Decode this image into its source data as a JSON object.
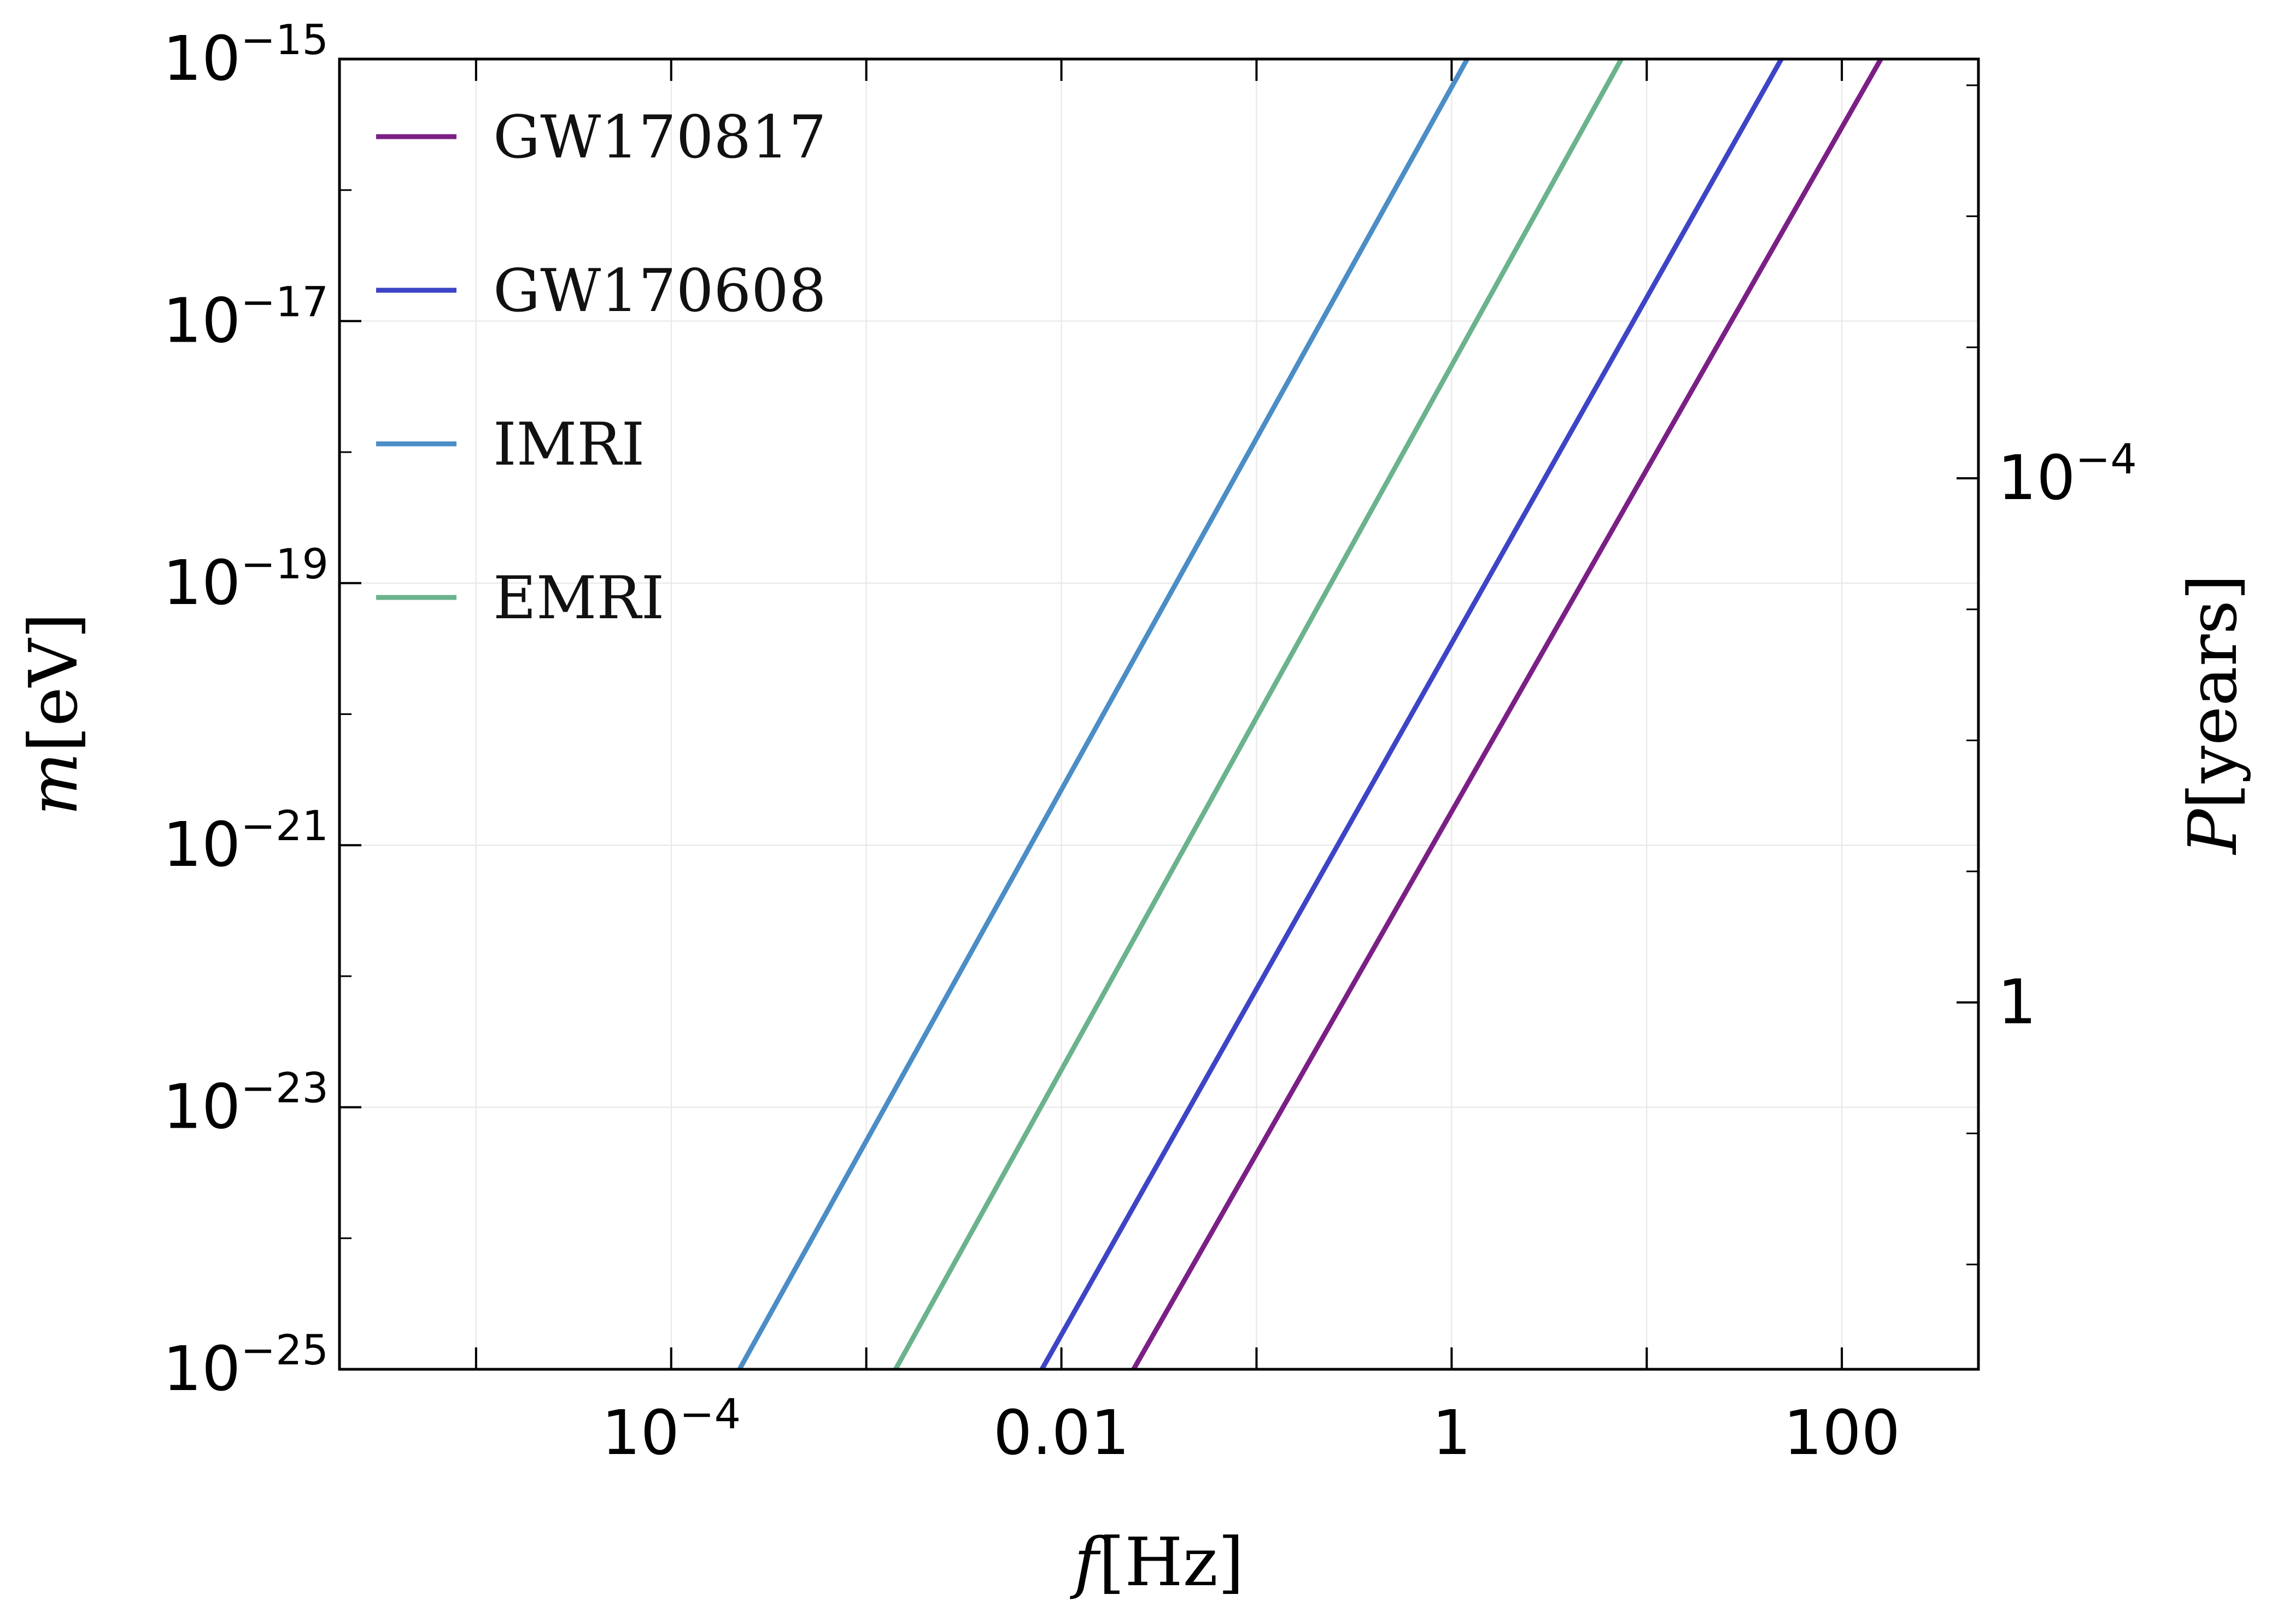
{
  "chart_data": {
    "type": "line",
    "title": "",
    "x_scale": "log",
    "y_scale": "log",
    "xlabel": {
      "symbol": "f",
      "unit": "[Hz]"
    },
    "ylabel": {
      "symbol": "m",
      "unit": "[eV]"
    },
    "y2label": {
      "symbol": "P",
      "unit": "[years]"
    },
    "xlim_log10": [
      -5.7,
      2.7
    ],
    "ylim_log10": [
      -25,
      -15
    ],
    "x_ticks": [
      {
        "log10": -4,
        "mantissa": "10",
        "exponent": "−4"
      },
      {
        "log10": -2,
        "mantissa": "0.01",
        "exponent": ""
      },
      {
        "log10": 0,
        "mantissa": "1",
        "exponent": ""
      },
      {
        "log10": 2,
        "mantissa": "100",
        "exponent": ""
      }
    ],
    "y_ticks": [
      {
        "log10": -25,
        "mantissa": "10",
        "exponent": "−25"
      },
      {
        "log10": -23,
        "mantissa": "10",
        "exponent": "−23"
      },
      {
        "log10": -21,
        "mantissa": "10",
        "exponent": "−21"
      },
      {
        "log10": -19,
        "mantissa": "10",
        "exponent": "−19"
      },
      {
        "log10": -17,
        "mantissa": "10",
        "exponent": "−17"
      },
      {
        "log10": -15,
        "mantissa": "10",
        "exponent": "−15"
      }
    ],
    "y2_ticks": [
      {
        "at_y_log10": -18.2,
        "mantissa": "10",
        "exponent": "−4"
      },
      {
        "at_y_log10": -22.2,
        "mantissa": "1",
        "exponent": ""
      }
    ],
    "grid": true,
    "legend_position": "top-left",
    "series": [
      {
        "name": "GW170817",
        "color": "#7b1f86",
        "x_log10": [
          -1.63,
          2.2
        ],
        "y_log10": [
          -25,
          -15
        ]
      },
      {
        "name": "GW170608",
        "color": "#3d44c6",
        "x_log10": [
          -2.1,
          1.69
        ],
        "y_log10": [
          -25,
          -15
        ]
      },
      {
        "name": "IMRI",
        "color": "#4b8dc6",
        "x_log10": [
          -3.65,
          0.08
        ],
        "y_log10": [
          -25,
          -15
        ]
      },
      {
        "name": "EMRI",
        "color": "#6ab38d",
        "x_log10": [
          -2.85,
          0.87
        ],
        "y_log10": [
          -25,
          -15
        ]
      }
    ]
  }
}
